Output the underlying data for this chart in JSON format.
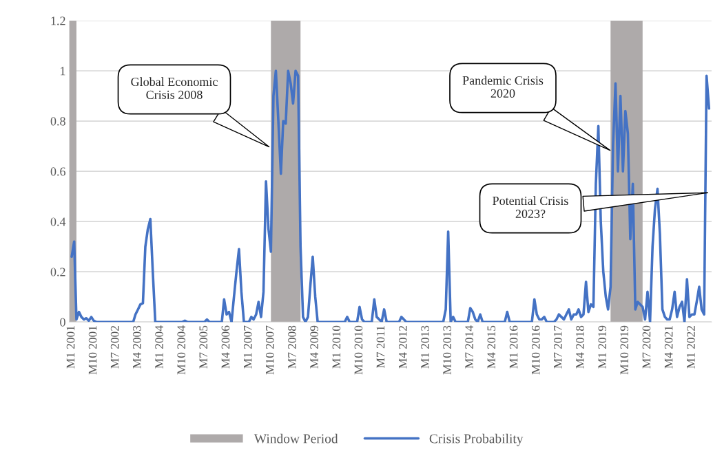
{
  "chart_data": {
    "type": "line",
    "x": [
      "2001-01",
      "2001-02",
      "2001-03",
      "2001-04",
      "2001-05",
      "2001-06",
      "2001-07",
      "2001-08",
      "2001-09",
      "2001-10",
      "2001-11",
      "2001-12",
      "2002-01",
      "2002-02",
      "2002-03",
      "2002-04",
      "2002-05",
      "2002-06",
      "2002-07",
      "2002-08",
      "2002-09",
      "2002-10",
      "2002-11",
      "2002-12",
      "2003-01",
      "2003-02",
      "2003-03",
      "2003-04",
      "2003-05",
      "2003-06",
      "2003-07",
      "2003-08",
      "2003-09",
      "2003-10",
      "2003-11",
      "2003-12",
      "2004-01",
      "2004-02",
      "2004-03",
      "2004-04",
      "2004-05",
      "2004-06",
      "2004-07",
      "2004-08",
      "2004-09",
      "2004-10",
      "2004-11",
      "2004-12",
      "2005-01",
      "2005-02",
      "2005-03",
      "2005-04",
      "2005-05",
      "2005-06",
      "2005-07",
      "2005-08",
      "2005-09",
      "2005-10",
      "2005-11",
      "2005-12",
      "2006-01",
      "2006-02",
      "2006-03",
      "2006-04",
      "2006-05",
      "2006-06",
      "2006-07",
      "2006-08",
      "2006-09",
      "2006-10",
      "2006-11",
      "2006-12",
      "2007-01",
      "2007-02",
      "2007-03",
      "2007-04",
      "2007-05",
      "2007-06",
      "2007-07",
      "2007-08",
      "2007-09",
      "2007-10",
      "2007-11",
      "2007-12",
      "2008-01",
      "2008-02",
      "2008-03",
      "2008-04",
      "2008-05",
      "2008-06",
      "2008-07",
      "2008-08",
      "2008-09",
      "2008-10",
      "2008-11",
      "2008-12",
      "2009-01",
      "2009-02",
      "2009-03",
      "2009-04",
      "2009-05",
      "2009-06",
      "2009-07",
      "2009-08",
      "2009-09",
      "2009-10",
      "2009-11",
      "2009-12",
      "2010-01",
      "2010-02",
      "2010-03",
      "2010-04",
      "2010-05",
      "2010-06",
      "2010-07",
      "2010-08",
      "2010-09",
      "2010-10",
      "2010-11",
      "2010-12",
      "2011-01",
      "2011-02",
      "2011-03",
      "2011-04",
      "2011-05",
      "2011-06",
      "2011-07",
      "2011-08",
      "2011-09",
      "2011-10",
      "2011-11",
      "2011-12",
      "2012-01",
      "2012-02",
      "2012-03",
      "2012-04",
      "2012-05",
      "2012-06",
      "2012-07",
      "2012-08",
      "2012-09",
      "2012-10",
      "2012-11",
      "2012-12",
      "2013-01",
      "2013-02",
      "2013-03",
      "2013-04",
      "2013-05",
      "2013-06",
      "2013-07",
      "2013-08",
      "2013-09",
      "2013-10",
      "2013-11",
      "2013-12",
      "2014-01",
      "2014-02",
      "2014-03",
      "2014-04",
      "2014-05",
      "2014-06",
      "2014-07",
      "2014-08",
      "2014-09",
      "2014-10",
      "2014-11",
      "2014-12",
      "2015-01",
      "2015-02",
      "2015-03",
      "2015-04",
      "2015-05",
      "2015-06",
      "2015-07",
      "2015-08",
      "2015-09",
      "2015-10",
      "2015-11",
      "2015-12",
      "2016-01",
      "2016-02",
      "2016-03",
      "2016-04",
      "2016-05",
      "2016-06",
      "2016-07",
      "2016-08",
      "2016-09",
      "2016-10",
      "2016-11",
      "2016-12",
      "2017-01",
      "2017-02",
      "2017-03",
      "2017-04",
      "2017-05",
      "2017-06",
      "2017-07",
      "2017-08",
      "2017-09",
      "2017-10",
      "2017-11",
      "2017-12",
      "2018-01",
      "2018-02",
      "2018-03",
      "2018-04",
      "2018-05",
      "2018-06",
      "2018-07",
      "2018-08",
      "2018-09",
      "2018-10",
      "2018-11",
      "2018-12",
      "2019-01",
      "2019-02",
      "2019-03",
      "2019-04",
      "2019-05",
      "2019-06",
      "2019-07",
      "2019-08",
      "2019-09",
      "2019-10",
      "2019-11",
      "2019-12",
      "2020-01",
      "2020-02",
      "2020-03",
      "2020-04",
      "2020-05",
      "2020-06",
      "2020-07",
      "2020-08",
      "2020-09",
      "2020-10",
      "2020-11",
      "2020-12",
      "2021-01",
      "2021-02",
      "2021-03",
      "2021-04",
      "2021-05",
      "2021-06",
      "2021-07",
      "2021-08",
      "2021-09",
      "2021-10",
      "2021-11",
      "2021-12",
      "2022-01",
      "2022-02",
      "2022-03",
      "2022-04",
      "2022-05",
      "2022-06",
      "2022-07",
      "2022-08"
    ],
    "series": [
      {
        "name": "Crisis Probability",
        "color": "#4472c4",
        "values": [
          0.26,
          0.32,
          0.01,
          0.04,
          0.02,
          0.01,
          0.015,
          0.005,
          0.02,
          0.005,
          0,
          0,
          0,
          0,
          0,
          0,
          0,
          0,
          0,
          0,
          0,
          0,
          0,
          0,
          0,
          0,
          0.03,
          0.05,
          0.07,
          0.075,
          0.3,
          0.37,
          0.41,
          0.2,
          0,
          0,
          0,
          0,
          0,
          0,
          0,
          0,
          0,
          0,
          0,
          0,
          0.005,
          0,
          0,
          0,
          0,
          0,
          0,
          0,
          0,
          0.01,
          0,
          0,
          0,
          0,
          0,
          0,
          0.09,
          0.03,
          0.04,
          0,
          0.1,
          0.2,
          0.29,
          0.12,
          0,
          0,
          0,
          0.02,
          0.01,
          0.03,
          0.08,
          0.02,
          0.12,
          0.56,
          0.37,
          0.28,
          0.9,
          1.0,
          0.8,
          0.59,
          0.8,
          0.79,
          1.0,
          0.95,
          0.87,
          1.0,
          0.98,
          0.3,
          0.02,
          0,
          0.02,
          0.15,
          0.26,
          0.1,
          0,
          0,
          0,
          0,
          0,
          0,
          0,
          0,
          0,
          0,
          0,
          0,
          0.02,
          0,
          0,
          0,
          0,
          0.06,
          0.01,
          0,
          0,
          0,
          0,
          0.09,
          0.02,
          0.01,
          0,
          0.05,
          0,
          0,
          0,
          0,
          0,
          0,
          0.02,
          0.01,
          0,
          0,
          0,
          0,
          0,
          0,
          0,
          0,
          0,
          0,
          0,
          0,
          0,
          0,
          0,
          0,
          0.05,
          0.36,
          0,
          0.02,
          0,
          0,
          0,
          0,
          0,
          0,
          0.055,
          0.04,
          0.01,
          0,
          0.03,
          0,
          0,
          0,
          0,
          0,
          0,
          0,
          0,
          0,
          0,
          0.04,
          0,
          0,
          0,
          0,
          0,
          0,
          0,
          0,
          0,
          0,
          0.09,
          0.03,
          0.01,
          0.01,
          0.02,
          0,
          0,
          0,
          0,
          0.01,
          0.03,
          0.02,
          0.01,
          0.03,
          0.05,
          0.01,
          0.03,
          0.03,
          0.05,
          0.02,
          0.03,
          0.16,
          0.04,
          0.07,
          0.06,
          0.55,
          0.78,
          0.4,
          0.2,
          0.1,
          0.05,
          0.14,
          0.7,
          0.95,
          0.6,
          0.9,
          0.6,
          0.84,
          0.75,
          0.33,
          0.55,
          0.05,
          0.08,
          0.07,
          0.06,
          0.01,
          0.12,
          0,
          0.3,
          0.45,
          0.53,
          0.35,
          0.05,
          0.02,
          0.01,
          0.01,
          0.05,
          0.12,
          0.02,
          0.06,
          0.08,
          0,
          0.17,
          0.02,
          0.03,
          0.03,
          0.08,
          0.14,
          0.05,
          0.03,
          0.98,
          0.85
        ]
      }
    ],
    "bands": [
      {
        "axis": "x",
        "from": "2000-12",
        "to": "2001-03",
        "label": "Window Period",
        "color": "#aeaaaa"
      },
      {
        "axis": "x",
        "from": "2007-10",
        "to": "2008-10",
        "color": "#aeaaaa"
      },
      {
        "axis": "x",
        "from": "2019-04",
        "to": "2020-05",
        "color": "#aeaaaa"
      }
    ],
    "xlim": [
      "2000-12",
      "2022-09"
    ],
    "xticks": [
      {
        "value": "2001-01",
        "label": "M1 2001"
      },
      {
        "value": "2001-10",
        "label": "M10 2001"
      },
      {
        "value": "2002-07",
        "label": "M7 2002"
      },
      {
        "value": "2003-04",
        "label": "M4 2003"
      },
      {
        "value": "2004-01",
        "label": "M1 2004"
      },
      {
        "value": "2004-10",
        "label": "M10 2004"
      },
      {
        "value": "2005-07",
        "label": "M7 2005"
      },
      {
        "value": "2006-04",
        "label": "M4 2006"
      },
      {
        "value": "2007-01",
        "label": "M1 2007"
      },
      {
        "value": "2007-10",
        "label": "M10 2007"
      },
      {
        "value": "2008-07",
        "label": "M7 2008"
      },
      {
        "value": "2009-04",
        "label": "M4 2009"
      },
      {
        "value": "2010-01",
        "label": "M1 2010"
      },
      {
        "value": "2010-10",
        "label": "M10 2010"
      },
      {
        "value": "2011-07",
        "label": "M7 2011"
      },
      {
        "value": "2012-04",
        "label": "M4 2012"
      },
      {
        "value": "2013-01",
        "label": "M1 2013"
      },
      {
        "value": "2013-10",
        "label": "M10 2013"
      },
      {
        "value": "2014-07",
        "label": "M7 2014"
      },
      {
        "value": "2015-04",
        "label": "M4 2015"
      },
      {
        "value": "2016-01",
        "label": "M1 2016"
      },
      {
        "value": "2016-10",
        "label": "M10 2016"
      },
      {
        "value": "2017-07",
        "label": "M7 2017"
      },
      {
        "value": "2018-04",
        "label": "M4 2018"
      },
      {
        "value": "2019-01",
        "label": "M1 2019"
      },
      {
        "value": "2019-10",
        "label": "M10 2019"
      },
      {
        "value": "2020-07",
        "label": "M7 2020"
      },
      {
        "value": "2021-04",
        "label": "M4 2021"
      },
      {
        "value": "2022-01",
        "label": "M1 2022"
      }
    ],
    "ylim": [
      0,
      1.2
    ],
    "yticks": [
      0,
      0.2,
      0.4,
      0.6,
      0.8,
      1,
      1.2
    ],
    "grid": "y",
    "legend": "bottom",
    "annotations": [
      "Global Economic\nCrisis 2008",
      "Pandemic Crisis\n2020",
      "Potential Crisis\n2023?"
    ]
  }
}
